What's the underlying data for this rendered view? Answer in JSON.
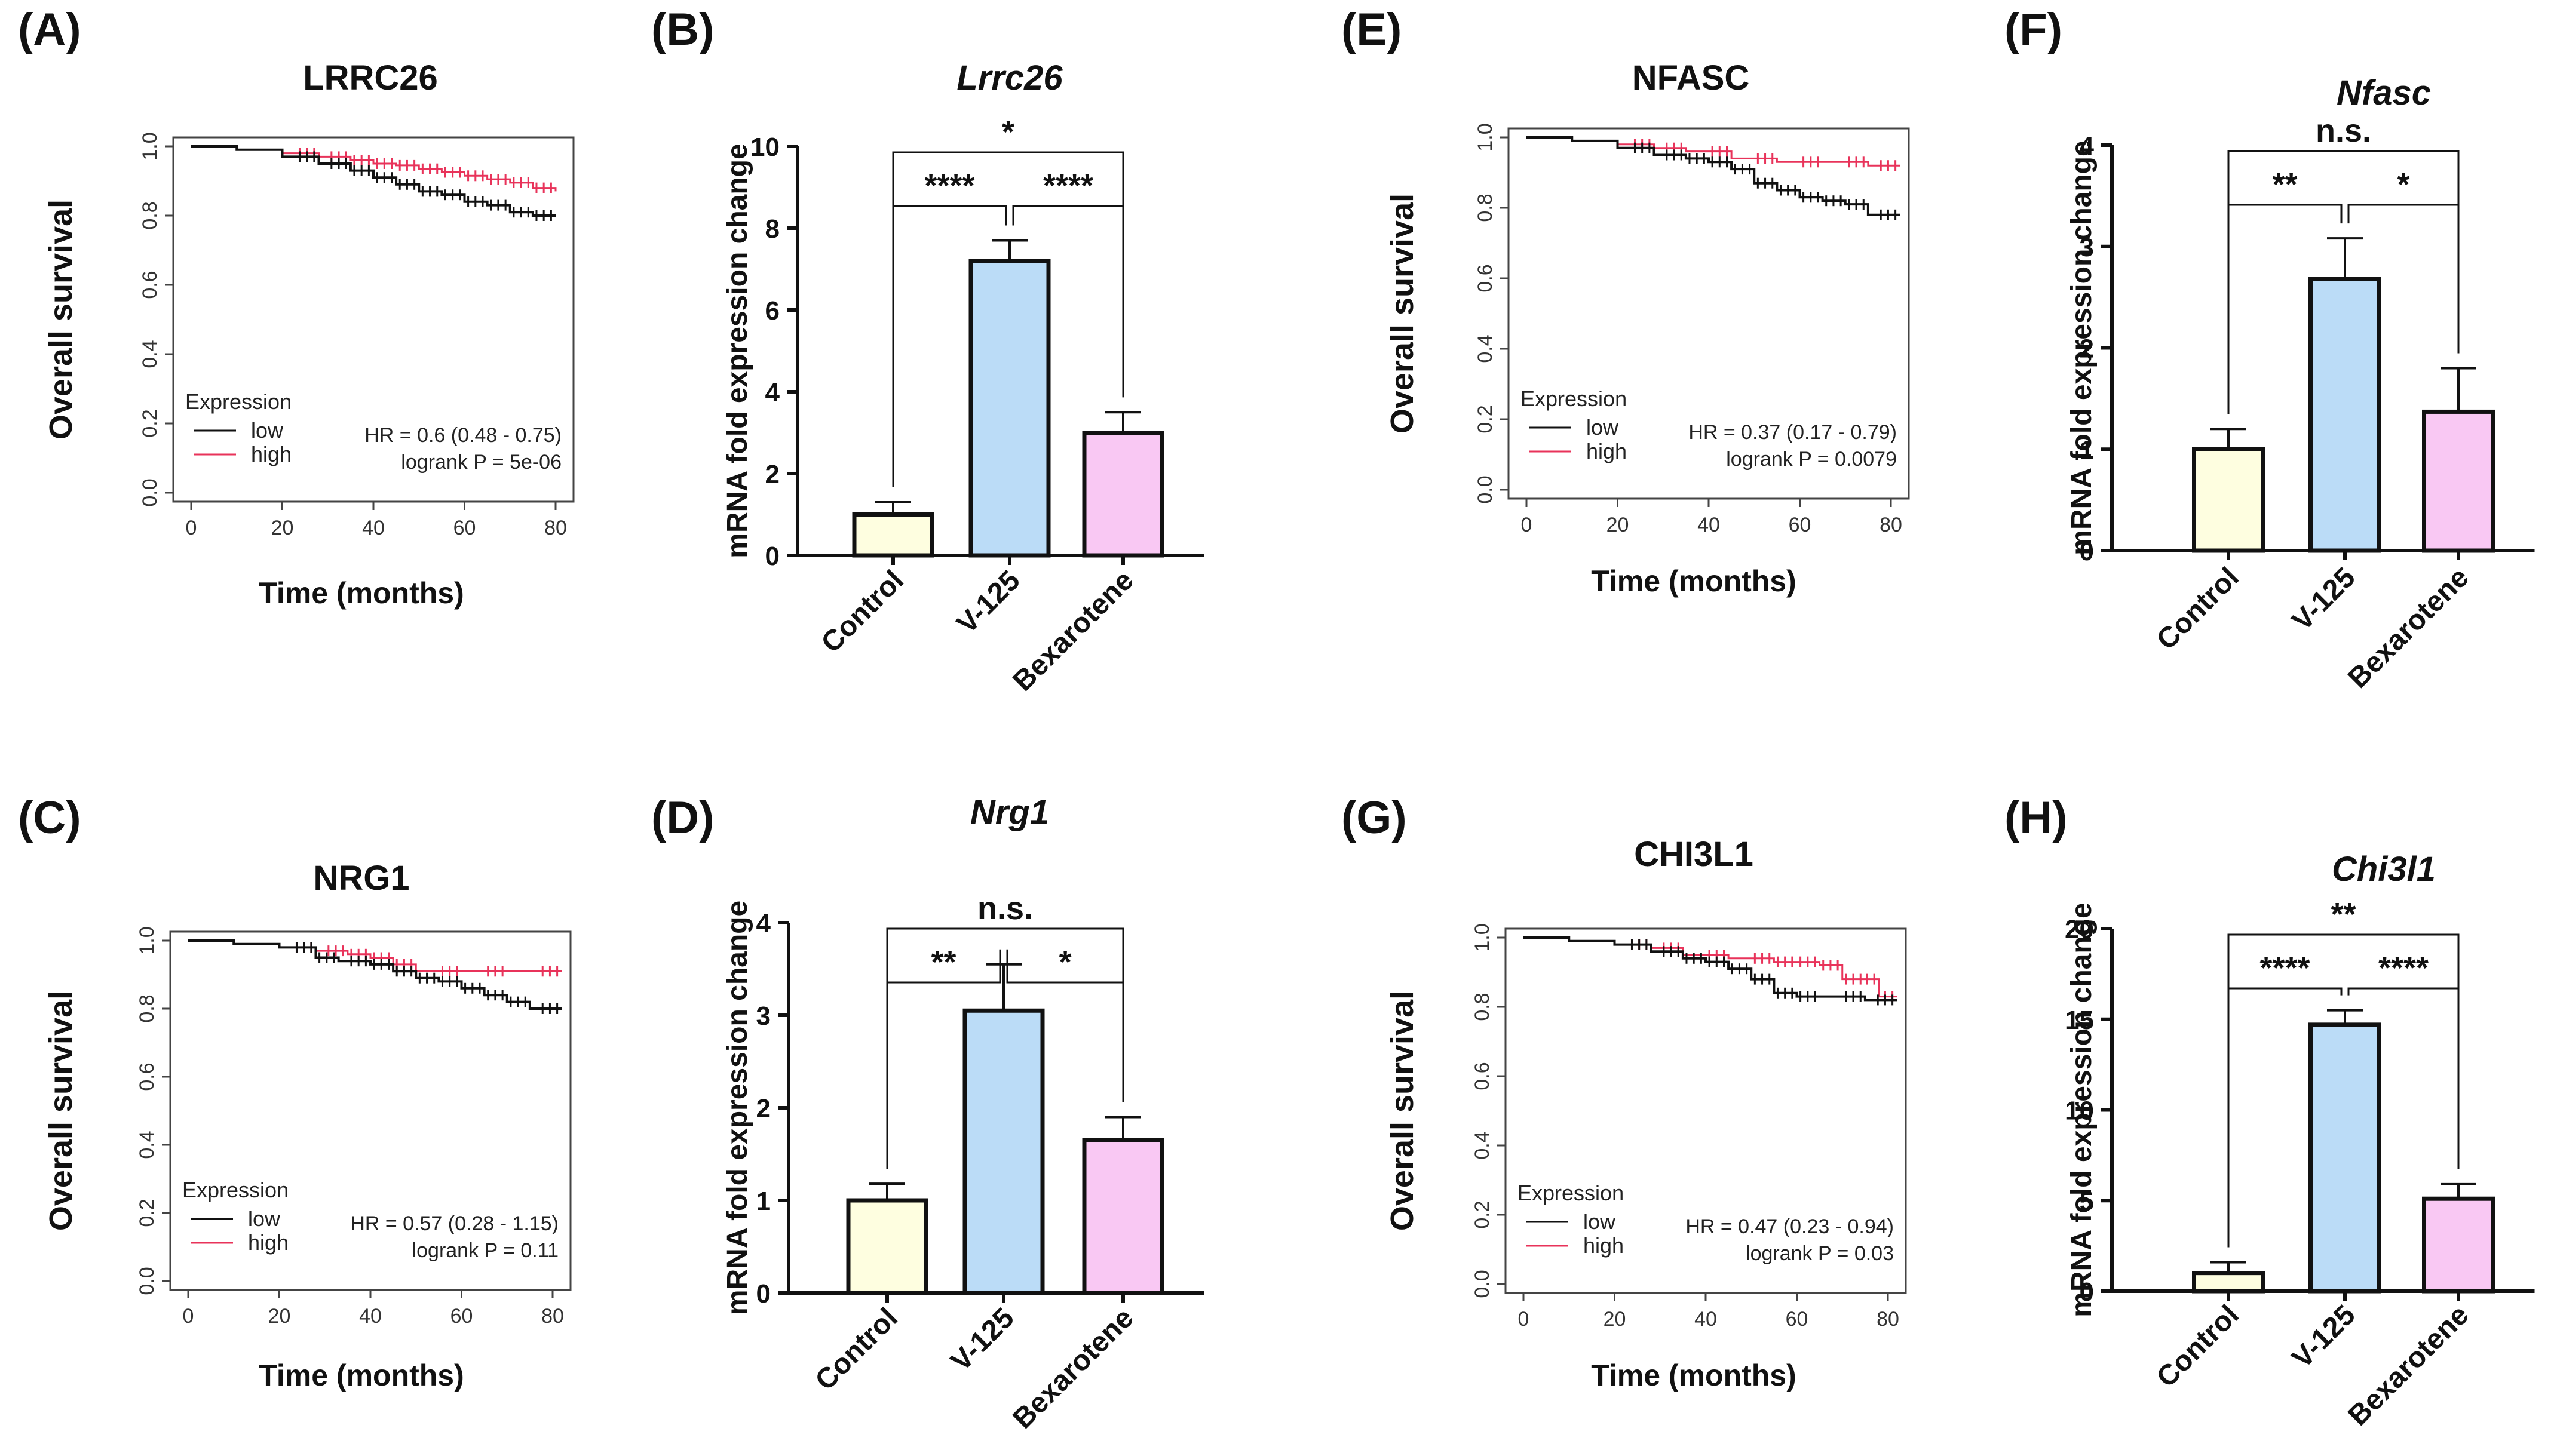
{
  "chart_data": [
    {
      "panel": "(A)",
      "type": "line",
      "subtype": "kaplan-meier",
      "title": "LRRC26",
      "xlabel": "Time (months)",
      "ylabel": "Overall survival",
      "xlim": [
        0,
        80
      ],
      "ylim": [
        0,
        1
      ],
      "xticks": [
        0,
        20,
        40,
        60,
        80
      ],
      "yticks": [
        0.0,
        0.2,
        0.4,
        0.6,
        0.8,
        1.0
      ],
      "legend_title": "Expression",
      "series": [
        {
          "name": "low",
          "color": "#111111",
          "x": [
            0,
            10,
            20,
            28,
            35,
            40,
            45,
            50,
            55,
            60,
            65,
            70,
            75,
            80
          ],
          "y": [
            1.0,
            0.99,
            0.97,
            0.95,
            0.93,
            0.91,
            0.89,
            0.87,
            0.86,
            0.84,
            0.83,
            0.81,
            0.8,
            0.8
          ]
        },
        {
          "name": "high",
          "color": "#e8335a",
          "x": [
            0,
            10,
            20,
            28,
            35,
            40,
            45,
            50,
            55,
            60,
            65,
            70,
            75,
            80
          ],
          "y": [
            1.0,
            0.99,
            0.98,
            0.97,
            0.96,
            0.95,
            0.945,
            0.935,
            0.925,
            0.915,
            0.905,
            0.895,
            0.88,
            0.87
          ]
        }
      ],
      "stats": [
        "HR = 0.6 (0.48 - 0.75)",
        "logrank P = 5e-06"
      ]
    },
    {
      "panel": "(B)",
      "type": "bar",
      "title": "Lrrc26",
      "ylabel": "mRNA fold expression change",
      "categories": [
        "Control",
        "V-125",
        "Bexarotene"
      ],
      "values": [
        1.0,
        7.2,
        3.0
      ],
      "errors": [
        0.3,
        0.5,
        0.5
      ],
      "colors": [
        "#fefee0",
        "#bbdcf7",
        "#f9c8f3"
      ],
      "ylim": [
        0,
        10
      ],
      "yticks": [
        0,
        2,
        4,
        6,
        8,
        10
      ],
      "comparisons": [
        {
          "from": 0,
          "to": 1,
          "label": "****",
          "level": 0
        },
        {
          "from": 1,
          "to": 2,
          "label": "****",
          "level": 0
        },
        {
          "from": 0,
          "to": 2,
          "label": "*",
          "level": 1
        }
      ]
    },
    {
      "panel": "(C)",
      "type": "line",
      "subtype": "kaplan-meier",
      "title": "NRG1",
      "xlabel": "Time (months)",
      "ylabel": "Overall survival",
      "xlim": [
        0,
        80
      ],
      "ylim": [
        0,
        1
      ],
      "xticks": [
        0,
        20,
        40,
        60,
        80
      ],
      "yticks": [
        0.0,
        0.2,
        0.4,
        0.6,
        0.8,
        1.0
      ],
      "legend_title": "Expression",
      "series": [
        {
          "name": "low",
          "color": "#111111",
          "x": [
            0,
            10,
            20,
            28,
            33,
            40,
            45,
            50,
            55,
            60,
            65,
            70,
            75,
            82
          ],
          "y": [
            1.0,
            0.99,
            0.98,
            0.95,
            0.94,
            0.93,
            0.91,
            0.89,
            0.88,
            0.86,
            0.84,
            0.82,
            0.8,
            0.8
          ]
        },
        {
          "name": "high",
          "color": "#e8335a",
          "x": [
            0,
            10,
            20,
            28,
            35,
            40,
            45,
            50,
            60,
            70,
            82
          ],
          "y": [
            1.0,
            0.99,
            0.98,
            0.97,
            0.96,
            0.95,
            0.93,
            0.91,
            0.91,
            0.91,
            0.91
          ]
        }
      ],
      "stats": [
        "HR = 0.57 (0.28 - 1.15)",
        "logrank P = 0.11"
      ]
    },
    {
      "panel": "(D)",
      "type": "bar",
      "title": "Nrg1",
      "ylabel": "mRNA fold expression change",
      "categories": [
        "Control",
        "V-125",
        "Bexarotene"
      ],
      "values": [
        1.0,
        3.05,
        1.65
      ],
      "errors": [
        0.18,
        0.5,
        0.25
      ],
      "colors": [
        "#fefee0",
        "#bbdcf7",
        "#f9c8f3"
      ],
      "ylim": [
        0,
        4
      ],
      "yticks": [
        0,
        1,
        2,
        3,
        4
      ],
      "comparisons": [
        {
          "from": 0,
          "to": 1,
          "label": "**",
          "level": 0
        },
        {
          "from": 1,
          "to": 2,
          "label": "*",
          "level": 0
        },
        {
          "from": 0,
          "to": 2,
          "label": "n.s.",
          "level": 1
        }
      ]
    },
    {
      "panel": "(E)",
      "type": "line",
      "subtype": "kaplan-meier",
      "title": "NFASC",
      "xlabel": "Time (months)",
      "ylabel": "Overall survival",
      "xlim": [
        0,
        80
      ],
      "ylim": [
        0,
        1
      ],
      "xticks": [
        0,
        20,
        40,
        60,
        80
      ],
      "yticks": [
        0.0,
        0.2,
        0.4,
        0.6,
        0.8,
        1.0
      ],
      "legend_title": "Expression",
      "series": [
        {
          "name": "low",
          "color": "#111111",
          "x": [
            0,
            10,
            20,
            28,
            35,
            40,
            45,
            50,
            55,
            60,
            65,
            70,
            75,
            82
          ],
          "y": [
            1.0,
            0.99,
            0.97,
            0.95,
            0.94,
            0.93,
            0.91,
            0.87,
            0.85,
            0.83,
            0.82,
            0.81,
            0.78,
            0.78
          ]
        },
        {
          "name": "high",
          "color": "#e8335a",
          "x": [
            0,
            10,
            20,
            28,
            35,
            45,
            55,
            65,
            75,
            82
          ],
          "y": [
            1.0,
            0.99,
            0.98,
            0.97,
            0.96,
            0.94,
            0.93,
            0.93,
            0.92,
            0.92
          ]
        }
      ],
      "stats": [
        "HR = 0.37 (0.17 - 0.79)",
        "logrank P = 0.0079"
      ]
    },
    {
      "panel": "(F)",
      "type": "bar",
      "title": "Nfasc",
      "ylabel": "mRNA fold expression change",
      "categories": [
        "Control",
        "V-125",
        "Bexarotene"
      ],
      "values": [
        1.0,
        2.68,
        1.37
      ],
      "errors": [
        0.2,
        0.4,
        0.43
      ],
      "colors": [
        "#fefee0",
        "#bbdcf7",
        "#f9c8f3"
      ],
      "ylim": [
        0,
        4
      ],
      "yticks": [
        0,
        1,
        2,
        3,
        4
      ],
      "comparisons": [
        {
          "from": 0,
          "to": 1,
          "label": "**",
          "level": 0
        },
        {
          "from": 1,
          "to": 2,
          "label": "*",
          "level": 0
        },
        {
          "from": 0,
          "to": 2,
          "label": "n.s.",
          "level": 1
        }
      ]
    },
    {
      "panel": "(G)",
      "type": "line",
      "subtype": "kaplan-meier",
      "title": "CHI3L1",
      "xlabel": "Time (months)",
      "ylabel": "Overall survival",
      "xlim": [
        0,
        80
      ],
      "ylim": [
        0,
        1
      ],
      "xticks": [
        0,
        20,
        40,
        60,
        80
      ],
      "yticks": [
        0.0,
        0.2,
        0.4,
        0.6,
        0.8,
        1.0
      ],
      "legend_title": "Expression",
      "series": [
        {
          "name": "low",
          "color": "#111111",
          "x": [
            0,
            10,
            20,
            28,
            35,
            40,
            45,
            50,
            55,
            60,
            65,
            75,
            82
          ],
          "y": [
            1.0,
            0.99,
            0.98,
            0.96,
            0.94,
            0.93,
            0.91,
            0.88,
            0.84,
            0.83,
            0.83,
            0.82,
            0.82
          ]
        },
        {
          "name": "high",
          "color": "#e8335a",
          "x": [
            0,
            10,
            20,
            28,
            35,
            45,
            55,
            60,
            65,
            70,
            75,
            78,
            82
          ],
          "y": [
            1.0,
            0.99,
            0.98,
            0.97,
            0.95,
            0.94,
            0.93,
            0.93,
            0.92,
            0.88,
            0.88,
            0.83,
            0.83
          ]
        }
      ],
      "stats": [
        "HR = 0.47 (0.23 - 0.94)",
        "logrank P = 0.03"
      ]
    },
    {
      "panel": "(H)",
      "type": "bar",
      "title": "Chi3l1",
      "ylabel": "mRNA fold expression change",
      "categories": [
        "Control",
        "V-125",
        "Bexarotene"
      ],
      "values": [
        1.0,
        14.7,
        5.1
      ],
      "errors": [
        0.6,
        0.8,
        0.8
      ],
      "colors": [
        "#fefee0",
        "#bbdcf7",
        "#f9c8f3"
      ],
      "ylim": [
        0,
        20
      ],
      "yticks": [
        0,
        5,
        10,
        15,
        20
      ],
      "comparisons": [
        {
          "from": 0,
          "to": 1,
          "label": "****",
          "level": 0
        },
        {
          "from": 1,
          "to": 2,
          "label": "****",
          "level": 0
        },
        {
          "from": 0,
          "to": 2,
          "label": "**",
          "level": 1
        }
      ]
    }
  ]
}
